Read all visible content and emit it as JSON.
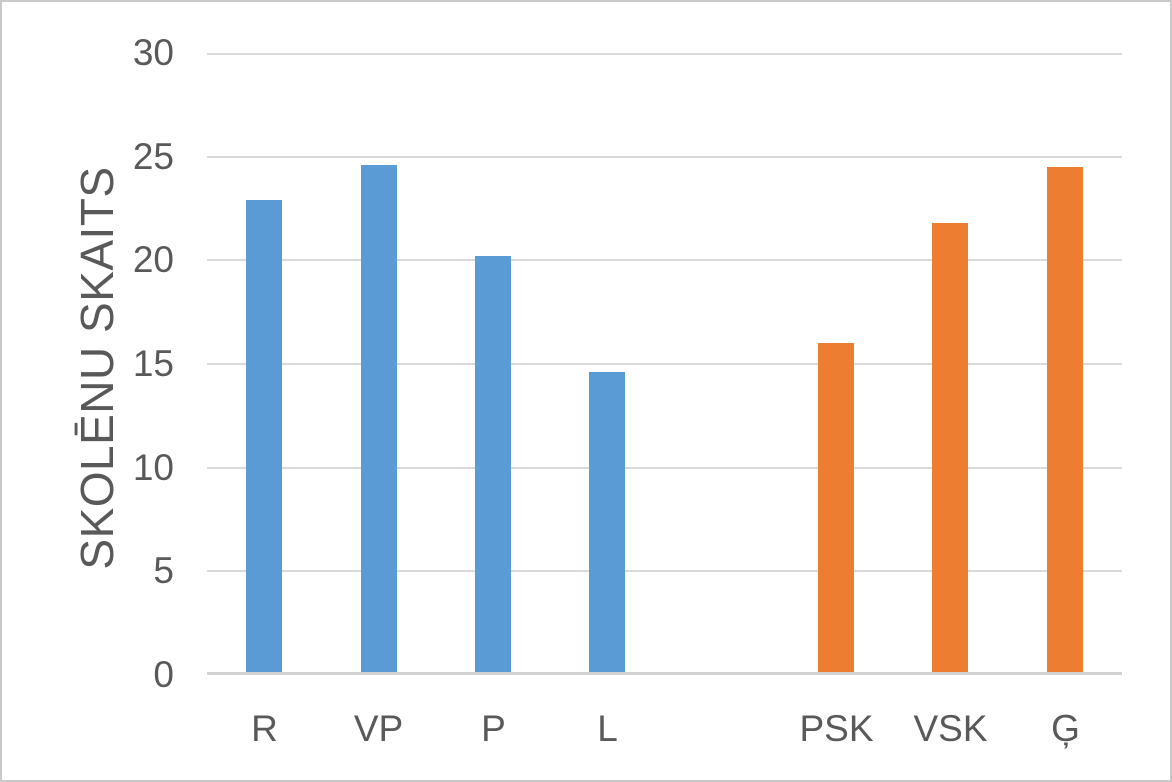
{
  "chart_data": {
    "type": "bar",
    "title": "",
    "xlabel": "",
    "ylabel": "SKOLĒNU SKAITS",
    "ylim": [
      0,
      30
    ],
    "ytick_interval": 5,
    "yticks": [
      30,
      25,
      20,
      15,
      10,
      5,
      0
    ],
    "categories": [
      "R",
      "VP",
      "P",
      "L",
      "",
      "PSK",
      "VSK",
      "Ģ"
    ],
    "values": [
      22.9,
      24.6,
      20.2,
      14.6,
      null,
      16.0,
      21.8,
      24.5
    ],
    "bar_colors": [
      "#5B9BD5",
      "#5B9BD5",
      "#5B9BD5",
      "#5B9BD5",
      null,
      "#ED7D31",
      "#ED7D31",
      "#ED7D31"
    ],
    "grid": true,
    "legend": "none",
    "colors": {
      "series_blue": "#5B9BD5",
      "series_orange": "#ED7D31",
      "axis_text": "#595959",
      "gridline": "#D9D9D9",
      "axis_line": "#D2D2D2",
      "background": "#FFFFFF",
      "frame_border": "#C9C9C9"
    }
  }
}
